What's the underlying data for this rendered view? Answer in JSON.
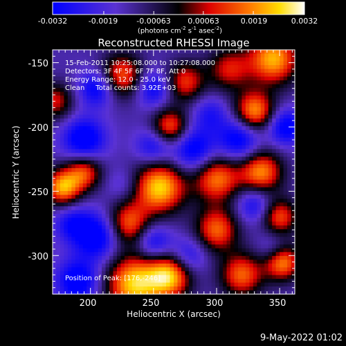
{
  "chart_data": {
    "type": "heatmap",
    "title": "Reconstructed RHESSI Image",
    "xlabel": "Heliocentric X (arcsec)",
    "ylabel": "Heliocentric Y (arcsec)",
    "xlim": [
      170,
      362
    ],
    "ylim": [
      -330,
      -140
    ],
    "x_ticks": [
      200,
      250,
      300,
      350
    ],
    "y_ticks": [
      -150,
      -200,
      -250,
      -300
    ],
    "colorbar": {
      "ticks": [
        "-0.0032",
        "-0.0019",
        "-0.00063",
        "0.00063",
        "0.0019",
        "0.0032"
      ],
      "unit_parts": {
        "a": "(photons cm",
        "b": "-2",
        "c": " s",
        "d": "-1",
        "e": " asec",
        "f": "-2",
        "g": ")"
      },
      "range": [
        -0.0032,
        0.0032
      ],
      "colormap": "blue-purple-red-yellow-white"
    },
    "annotations": [
      "15-Feb-2011 10:25:08.000 to 10:27:08.000",
      "Detectors: 3F 4F 5F 6F 7F 8F, Att 0",
      "Energy Range: 12.0 - 25.0 keV",
      "Clean     Total counts: 3.92E+03",
      "Position of Peak: [176,-246]"
    ],
    "peak": {
      "x": 176,
      "y": -246
    },
    "timestamp": "9-May-2022 01:02",
    "sources": [
      {
        "x": 255,
        "y": -247,
        "amp": 0.0032,
        "w": 14
      },
      {
        "x": 235,
        "y": -322,
        "amp": 0.0032,
        "w": 16
      },
      {
        "x": 263,
        "y": -316,
        "amp": 0.0028,
        "w": 12
      },
      {
        "x": 178,
        "y": -247,
        "amp": 0.0028,
        "w": 10
      },
      {
        "x": 345,
        "y": -147,
        "amp": 0.0029,
        "w": 14
      },
      {
        "x": 330,
        "y": -188,
        "amp": 0.0027,
        "w": 11
      },
      {
        "x": 335,
        "y": -235,
        "amp": 0.0026,
        "w": 12
      },
      {
        "x": 352,
        "y": -305,
        "amp": 0.0027,
        "w": 10
      },
      {
        "x": 300,
        "y": -240,
        "amp": 0.0024,
        "w": 13
      },
      {
        "x": 300,
        "y": -280,
        "amp": 0.0022,
        "w": 12
      },
      {
        "x": 320,
        "y": -315,
        "amp": 0.0022,
        "w": 12
      },
      {
        "x": 230,
        "y": -275,
        "amp": 0.0022,
        "w": 12
      },
      {
        "x": 263,
        "y": -200,
        "amp": 0.0022,
        "w": 10
      },
      {
        "x": 225,
        "y": -160,
        "amp": 0.0021,
        "w": 12
      },
      {
        "x": 275,
        "y": -165,
        "amp": 0.0018,
        "w": 11
      },
      {
        "x": 195,
        "y": -235,
        "amp": 0.002,
        "w": 10
      },
      {
        "x": 350,
        "y": -270,
        "amp": 0.002,
        "w": 10
      },
      {
        "x": 172,
        "y": -180,
        "amp": 0.0015,
        "w": 10
      },
      {
        "x": 310,
        "y": -155,
        "amp": 0.0015,
        "w": 12
      },
      {
        "x": 195,
        "y": -210,
        "amp": -0.0032,
        "w": 12
      },
      {
        "x": 205,
        "y": -285,
        "amp": -0.0032,
        "w": 13
      },
      {
        "x": 190,
        "y": -320,
        "amp": -0.0031,
        "w": 12
      },
      {
        "x": 282,
        "y": -218,
        "amp": -0.003,
        "w": 12
      },
      {
        "x": 205,
        "y": -170,
        "amp": -0.0028,
        "w": 10
      },
      {
        "x": 250,
        "y": -170,
        "amp": -0.0026,
        "w": 10
      },
      {
        "x": 318,
        "y": -210,
        "amp": -0.003,
        "w": 12
      },
      {
        "x": 355,
        "y": -200,
        "amp": -0.0029,
        "w": 10
      },
      {
        "x": 250,
        "y": -215,
        "amp": -0.0024,
        "w": 10
      },
      {
        "x": 250,
        "y": -290,
        "amp": -0.0026,
        "w": 10
      },
      {
        "x": 278,
        "y": -300,
        "amp": -0.0022,
        "w": 10
      },
      {
        "x": 330,
        "y": -260,
        "amp": -0.0024,
        "w": 10
      },
      {
        "x": 295,
        "y": -190,
        "amp": -0.002,
        "w": 10
      },
      {
        "x": 185,
        "y": -275,
        "amp": -0.0022,
        "w": 10
      },
      {
        "x": 225,
        "y": -245,
        "amp": -0.0014,
        "w": 9
      },
      {
        "x": 345,
        "y": -295,
        "amp": -0.0018,
        "w": 9
      }
    ]
  }
}
